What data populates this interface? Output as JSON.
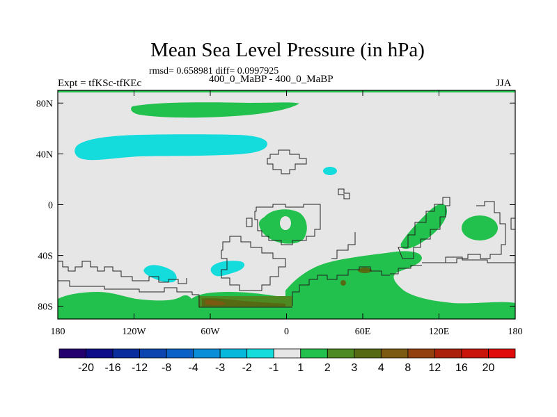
{
  "title": "Mean Sea Level Pressure (in hPa)",
  "stats": "rmsd= 0.658981 diff= 0.0997925",
  "left_label": "Expt = tfKSc-tfKEc",
  "center_label": "400_0_MaBP - 400_0_MaBP",
  "right_label": "JJA",
  "map": {
    "projection": "cylindrical-equidistant",
    "lon_range": [
      -180,
      180
    ],
    "lat_range": [
      -90,
      90
    ],
    "x_ticks": [
      {
        "value": -180,
        "label": "180"
      },
      {
        "value": -120,
        "label": "120W"
      },
      {
        "value": -60,
        "label": "60W"
      },
      {
        "value": 0,
        "label": "0"
      },
      {
        "value": 60,
        "label": "60E"
      },
      {
        "value": 120,
        "label": "120E"
      },
      {
        "value": 180,
        "label": "180"
      }
    ],
    "y_ticks": [
      {
        "value": 80,
        "label": "80N"
      },
      {
        "value": 40,
        "label": "40N"
      },
      {
        "value": 0,
        "label": "0"
      },
      {
        "value": -40,
        "label": "40S"
      },
      {
        "value": -80,
        "label": "80S"
      }
    ]
  },
  "colorbar": {
    "labels": [
      "-20",
      "-16",
      "-12",
      "-8",
      "-4",
      "-3",
      "-2",
      "-1",
      "1",
      "2",
      "3",
      "4",
      "8",
      "12",
      "16",
      "20"
    ],
    "colors": [
      "#24006e",
      "#0d0d8a",
      "#0a2d9e",
      "#0c45b0",
      "#0b60c8",
      "#0b8ed8",
      "#05b8dc",
      "#14dcdc",
      "#e6e6e6",
      "#22c04c",
      "#4e8a22",
      "#566a14",
      "#7c5a12",
      "#94400e",
      "#aa200a",
      "#c8140a",
      "#e00a0a"
    ]
  },
  "colors": {
    "background": "#e6e6e6",
    "positive_1_2": "#22c04c",
    "positive_2_3": "#4e8a22",
    "positive_3_4": "#566a14",
    "positive_4_8": "#7c5a12",
    "negative_2_1": "#14dcdc"
  }
}
